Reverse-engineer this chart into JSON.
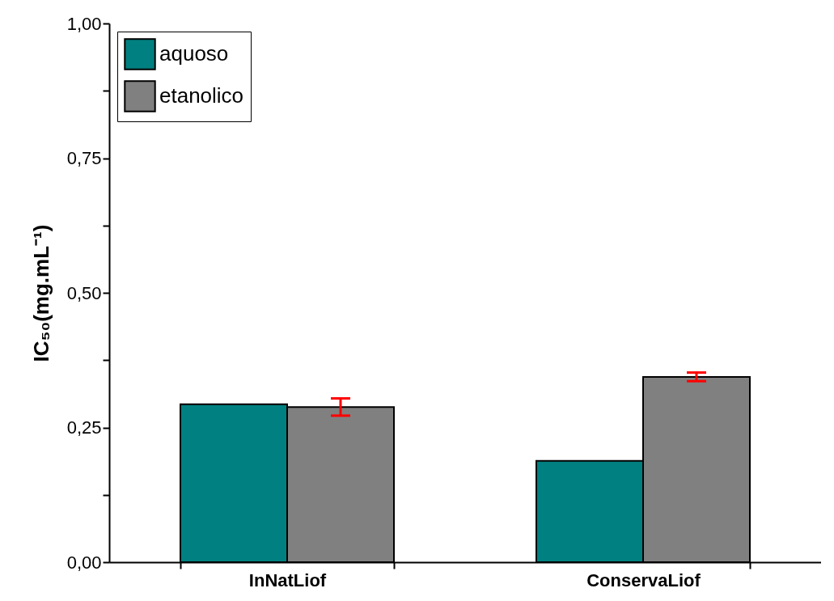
{
  "chart_data": {
    "type": "bar",
    "ylabel": "IC₅₀(mg.mL⁻¹)",
    "categories": [
      "InNatLiof",
      "ConservaLiof"
    ],
    "series": [
      {
        "name": "aquoso",
        "color": "#008080",
        "values": [
          0.293,
          0.188
        ]
      },
      {
        "name": "etanolico",
        "color": "#808080",
        "values": [
          0.288,
          0.344
        ],
        "errors": [
          0.016,
          0.008
        ]
      }
    ],
    "ylim": [
      0,
      1
    ],
    "yticks": [
      {
        "value": 0,
        "label": "0,00"
      },
      {
        "value": 0.125,
        "label": null
      },
      {
        "value": 0.25,
        "label": "0,25"
      },
      {
        "value": 0.375,
        "label": null
      },
      {
        "value": 0.5,
        "label": "0,50"
      },
      {
        "value": 0.625,
        "label": null
      },
      {
        "value": 0.75,
        "label": "0,75"
      },
      {
        "value": 0.875,
        "label": null
      },
      {
        "value": 1,
        "label": "1,00"
      }
    ],
    "legend": "top left",
    "grid": false
  }
}
